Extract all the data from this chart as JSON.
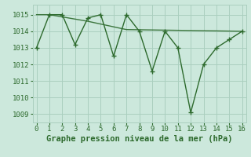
{
  "x_main": [
    0,
    1,
    2,
    3,
    4,
    5,
    6,
    7,
    8,
    9,
    10,
    11,
    12,
    13,
    14,
    15,
    16
  ],
  "y_main": [
    1013.0,
    1015.0,
    1015.0,
    1013.2,
    1014.8,
    1015.0,
    1012.5,
    1015.0,
    1014.0,
    1011.6,
    1014.0,
    1013.0,
    1009.1,
    1012.0,
    1013.0,
    1013.5,
    1014.0
  ],
  "x_trend": [
    0,
    1,
    4,
    7,
    16
  ],
  "y_trend": [
    1015.0,
    1015.0,
    1014.6,
    1014.1,
    1014.0
  ],
  "line_color": "#2d6a2d",
  "bg_color": "#cce8dc",
  "grid_color": "#aacfbf",
  "title": "Graphe pression niveau de la mer (hPa)",
  "xlim": [
    -0.3,
    16.3
  ],
  "ylim": [
    1008.5,
    1015.6
  ],
  "yticks": [
    1009,
    1010,
    1011,
    1012,
    1013,
    1014,
    1015
  ],
  "xticks": [
    0,
    1,
    2,
    3,
    4,
    5,
    6,
    7,
    8,
    9,
    10,
    11,
    12,
    13,
    14,
    15,
    16
  ],
  "marker": "+",
  "markersize": 4,
  "linewidth": 1.0,
  "title_fontsize": 7.5,
  "tick_fontsize": 6.5
}
